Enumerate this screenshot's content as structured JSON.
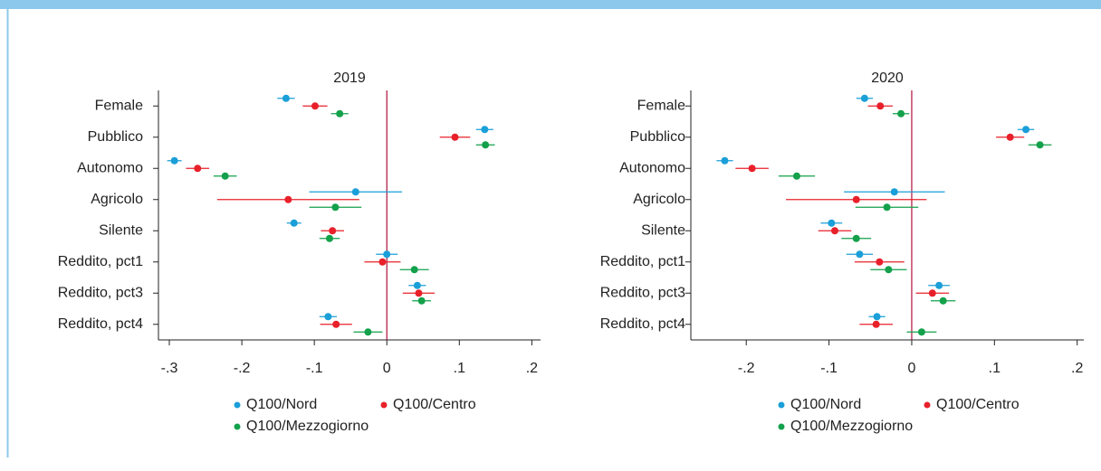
{
  "chart_data": [
    {
      "type": "errorbar",
      "title": "2019",
      "categories": [
        "Female",
        "Pubblico",
        "Autonomo",
        "Agricolo",
        "Silente",
        "Reddito, pct1",
        "Reddito, pct3",
        "Reddito, pct4"
      ],
      "series": [
        {
          "name": "Q100/Nord",
          "color": "#1a9fd8",
          "values": [
            -0.139,
            0.135,
            -0.293,
            -0.043,
            -0.128,
            0.0,
            0.042,
            -0.081
          ],
          "errors": [
            0.012,
            0.012,
            0.01,
            0.064,
            0.01,
            0.015,
            0.012,
            0.012
          ]
        },
        {
          "name": "Q100/Centro",
          "color": "#e8202a",
          "values": [
            -0.099,
            0.094,
            -0.261,
            -0.136,
            -0.075,
            -0.006,
            0.044,
            -0.07
          ],
          "errors": [
            0.017,
            0.021,
            0.016,
            0.098,
            0.016,
            0.025,
            0.022,
            0.022
          ]
        },
        {
          "name": "Q100/Mezzogiorno",
          "color": "#13a14b",
          "values": [
            -0.065,
            0.136,
            -0.223,
            -0.071,
            -0.079,
            0.038,
            0.048,
            -0.026
          ],
          "errors": [
            0.012,
            0.013,
            0.016,
            0.036,
            0.014,
            0.02,
            0.013,
            0.02
          ]
        }
      ],
      "xlim": [
        -0.315,
        0.212
      ],
      "xticks": [
        {
          "value": -0.3,
          "label": "-.3"
        },
        {
          "value": -0.2,
          "label": "-.2"
        },
        {
          "value": -0.1,
          "label": "-.1"
        },
        0,
        {
          "value": 0.1,
          "label": ".1"
        },
        {
          "value": 0.2,
          "label": ".2"
        }
      ],
      "legend": "bottom"
    },
    {
      "type": "errorbar",
      "title": "2020",
      "categories": [
        "Female",
        "Pubblico",
        "Autonomo",
        "Agricolo",
        "Silente",
        "Reddito, pct1",
        "Reddito, pct3",
        "Reddito, pct4"
      ],
      "series": [
        {
          "name": "Q100/Nord",
          "color": "#1a9fd8",
          "values": [
            -0.057,
            0.138,
            -0.226,
            -0.021,
            -0.097,
            -0.063,
            0.033,
            -0.042
          ],
          "errors": [
            0.01,
            0.01,
            0.01,
            0.061,
            0.013,
            0.016,
            0.013,
            0.01
          ]
        },
        {
          "name": "Q100/Centro",
          "color": "#e8202a",
          "values": [
            -0.038,
            0.119,
            -0.193,
            -0.067,
            -0.093,
            -0.039,
            0.025,
            -0.043
          ],
          "errors": [
            0.015,
            0.017,
            0.02,
            0.085,
            0.02,
            0.03,
            0.02,
            0.02
          ]
        },
        {
          "name": "Q100/Mezzogiorno",
          "color": "#13a14b",
          "values": [
            -0.013,
            0.155,
            -0.139,
            -0.03,
            -0.067,
            -0.028,
            0.038,
            0.012
          ],
          "errors": [
            0.01,
            0.014,
            0.022,
            0.038,
            0.018,
            0.022,
            0.015,
            0.018
          ]
        }
      ],
      "xlim": [
        -0.267,
        0.208
      ],
      "xticks": [
        {
          "value": -0.2,
          "label": "-.2"
        },
        {
          "value": -0.1,
          "label": "-.1"
        },
        0,
        {
          "value": 0.1,
          "label": ".1"
        },
        {
          "value": 0.2,
          "label": ".2"
        }
      ],
      "legend": "bottom"
    }
  ]
}
